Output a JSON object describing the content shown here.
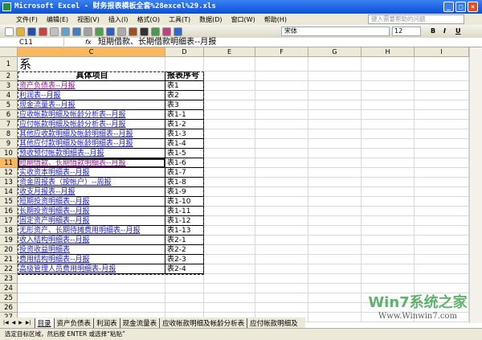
{
  "window": {
    "title": "Microsoft Excel - 财务报表模板全套%28excel%29.xls"
  },
  "menu": {
    "items": [
      "文件(F)",
      "编辑(E)",
      "视图(V)",
      "插入(I)",
      "格式(O)",
      "工具(T)",
      "数据(D)",
      "窗口(W)",
      "帮助(H)"
    ],
    "help_placeholder": "键入需要帮助的问题"
  },
  "toolbar": {
    "font": "宋体",
    "size": "12",
    "bold": "B",
    "italic": "I",
    "underline": "U"
  },
  "formula": {
    "name_box": "C11",
    "fx": "fx",
    "value": "短期借款、长期借款明细表--月报"
  },
  "columns": [
    "C",
    "D",
    "E",
    "F",
    "G",
    "H",
    "I"
  ],
  "selected_column": "C",
  "selected_row": 11,
  "rows": [
    {
      "n": "1",
      "c": "系",
      "d": ""
    },
    {
      "n": "2",
      "c": "具体项目",
      "d": "报表序号"
    },
    {
      "n": "3",
      "c": "资产负债表--月报",
      "d": "表1"
    },
    {
      "n": "4",
      "c": "利润表--月报",
      "d": "表2"
    },
    {
      "n": "5",
      "c": "现金流量表--月报",
      "d": "表3"
    },
    {
      "n": "6",
      "c": "应收帐款明细及帐龄分析表--月报",
      "d": "表1-1"
    },
    {
      "n": "7",
      "c": "应付帐款明细及帐龄分析表--月报",
      "d": "表1-2"
    },
    {
      "n": "8",
      "c": "其他应收款明细及帐龄明细表--月报",
      "d": "表1-3"
    },
    {
      "n": "9",
      "c": "其他应付款明细及帐龄明细表--月报",
      "d": "表1-4"
    },
    {
      "n": "10",
      "c": "预收预付帐款明细表--月报",
      "d": "表1-5"
    },
    {
      "n": "11",
      "c": "短期借款、长期借款明细表--月报",
      "d": "表1-6"
    },
    {
      "n": "12",
      "c": "实收资本明细表--月报",
      "d": "表1-7"
    },
    {
      "n": "13",
      "c": "资金周报表（按帐户）--周报",
      "d": "表1-8"
    },
    {
      "n": "14",
      "c": "收支月报表--月报",
      "d": "表1-9"
    },
    {
      "n": "15",
      "c": "短期投资明细表--月报",
      "d": "表1-10"
    },
    {
      "n": "16",
      "c": "长期投资明细表--月报",
      "d": "表1-11"
    },
    {
      "n": "17",
      "c": "固定资产明细表--月报",
      "d": "表1-12"
    },
    {
      "n": "18",
      "c": "无形资产、长期待摊费用明细表--月报",
      "d": "表1-13"
    },
    {
      "n": "19",
      "c": "收入结构明细表--月报",
      "d": "表2-1"
    },
    {
      "n": "20",
      "c": "投资收益明细表",
      "d": "表2-2"
    },
    {
      "n": "21",
      "c": "费用结构明细表--月报",
      "d": "表2-3"
    },
    {
      "n": "22",
      "c": "高级管理人员费用明细表-月报",
      "d": "表2-4"
    },
    {
      "n": "23",
      "c": "",
      "d": ""
    },
    {
      "n": "24",
      "c": "",
      "d": ""
    },
    {
      "n": "25",
      "c": "",
      "d": ""
    },
    {
      "n": "26",
      "c": "",
      "d": ""
    },
    {
      "n": "27",
      "c": "",
      "d": ""
    }
  ],
  "sheet_tabs": [
    "目录",
    "资产负债表",
    "利润表",
    "现金流量表",
    "应收帐款明细及帐龄分析表",
    "应付帐款明细及"
  ],
  "active_tab": "目录",
  "status": "选定目标区域，然后按 ENTER 或选择“粘贴”",
  "watermark": {
    "brand": "Win7系统之家",
    "url": "Www.Winwin7.com"
  },
  "colors": {
    "link": "#2020c0",
    "visited": "#8a1a8a",
    "selection": "#f8b860",
    "title": "#0a4ed8"
  }
}
